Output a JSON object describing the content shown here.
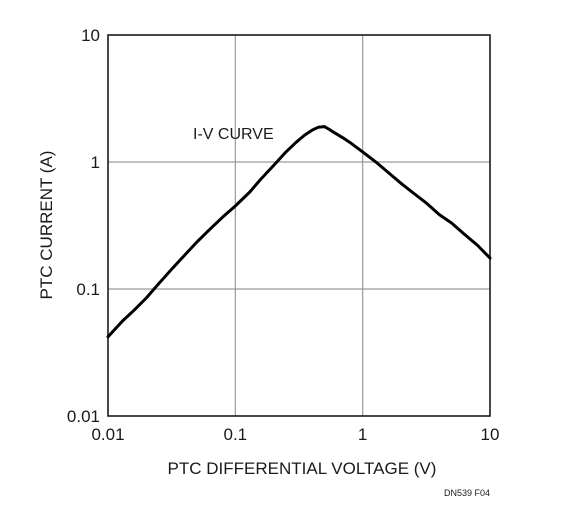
{
  "chart_data": {
    "type": "line",
    "title": "",
    "xlabel": "PTC DIFFERENTIAL VOLTAGE (V)",
    "ylabel": "PTC CURRENT (A)",
    "xscale": "log",
    "yscale": "log",
    "xlim": [
      0.01,
      10
    ],
    "ylim": [
      0.01,
      10
    ],
    "grid": true,
    "x_ticks": [
      "0.01",
      "0.1",
      "1",
      "10"
    ],
    "y_ticks": [
      "0.01",
      "0.1",
      "1",
      "10"
    ],
    "series": [
      {
        "x": [
          0.01,
          0.013,
          0.016,
          0.02,
          0.025,
          0.032,
          0.04,
          0.05,
          0.063,
          0.08,
          0.1,
          0.13,
          0.16,
          0.2,
          0.25,
          0.3,
          0.35,
          0.4,
          0.45,
          0.5,
          0.55,
          0.6,
          0.7,
          0.8,
          1.0,
          1.3,
          1.6,
          2.0,
          2.5,
          3.2,
          4.0,
          5.0,
          6.3,
          8.0,
          10.0
        ],
        "y": [
          0.042,
          0.056,
          0.068,
          0.085,
          0.11,
          0.145,
          0.185,
          0.235,
          0.295,
          0.37,
          0.45,
          0.58,
          0.74,
          0.94,
          1.2,
          1.43,
          1.63,
          1.78,
          1.88,
          1.9,
          1.8,
          1.7,
          1.55,
          1.42,
          1.2,
          0.98,
          0.82,
          0.68,
          0.57,
          0.47,
          0.385,
          0.33,
          0.27,
          0.22,
          0.175
        ]
      }
    ],
    "annotations": [
      "I-V CURVE"
    ]
  },
  "figure_code": "DN539 F04",
  "line_color": "#000000",
  "grid_color": "#9a9a9a"
}
